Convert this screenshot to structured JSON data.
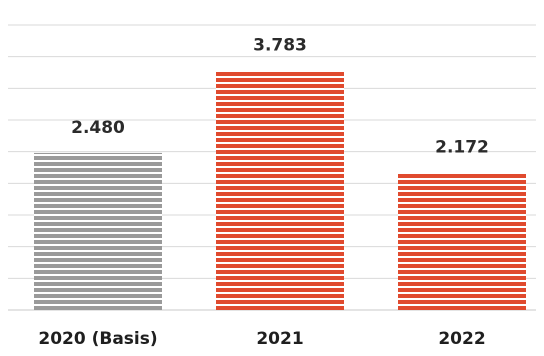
{
  "chart_data": {
    "type": "bar",
    "title": "",
    "xlabel": "",
    "ylabel": "",
    "categories": [
      "2020 (Basis)",
      "2021",
      "2022"
    ],
    "values": [
      2480,
      3783,
      2172
    ],
    "value_labels": [
      "2.480",
      "3.783",
      "2.172"
    ],
    "ylim": [
      0,
      4500
    ],
    "grid": true,
    "legend": "none",
    "bar_colors": [
      "#9a9a9a",
      "#e04a2e",
      "#e04a2e"
    ],
    "gridline_color": "#d9d9d9",
    "stripe_color": "#ffffff"
  }
}
